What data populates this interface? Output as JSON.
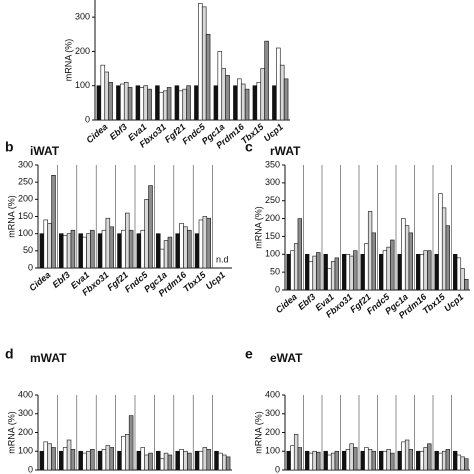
{
  "chart_data": [
    {
      "type": "bar",
      "ylabel": "mRNA (%)",
      "categories": [
        "Cidea",
        "Ebf3",
        "Eva1",
        "Fbxo31",
        "Fgf21",
        "Fndc5",
        "Pgc1a",
        "Prdm16",
        "Tbx15",
        "Ucp1"
      ],
      "ylim": [
        0,
        350
      ],
      "yticks": [
        0,
        100,
        200,
        300
      ],
      "series": [
        {
          "color": "#111111",
          "values": [
            100,
            100,
            100,
            100,
            100,
            100,
            100,
            100,
            100,
            100
          ]
        },
        {
          "color": "#ffffff",
          "values": [
            160,
            105,
            95,
            80,
            85,
            340,
            200,
            120,
            110,
            210
          ]
        },
        {
          "color": "#d9d9d9",
          "values": [
            140,
            110,
            100,
            85,
            90,
            330,
            150,
            105,
            150,
            160
          ]
        },
        {
          "color": "#8c8c8c",
          "values": [
            110,
            95,
            90,
            95,
            100,
            250,
            130,
            90,
            230,
            120
          ]
        }
      ]
    },
    {
      "type": "bar",
      "label": "b",
      "title": "iWAT",
      "ylabel": "mRNA (%)",
      "categories": [
        "Cidea",
        "Ebf3",
        "Eva1",
        "Fbxo31",
        "Fgf21",
        "Fndc5",
        "Pgc1a",
        "Prdm16",
        "Tbx15",
        "Ucp1"
      ],
      "ylim": [
        0,
        300
      ],
      "yticks": [
        0,
        50,
        100,
        150,
        200,
        250,
        300
      ],
      "annotation": "n.d",
      "series": [
        {
          "color": "#111111",
          "values": [
            100,
            100,
            100,
            100,
            100,
            100,
            100,
            100,
            100,
            null
          ]
        },
        {
          "color": "#ffffff",
          "values": [
            140,
            95,
            90,
            110,
            110,
            110,
            55,
            130,
            140,
            null
          ]
        },
        {
          "color": "#d9d9d9",
          "values": [
            130,
            100,
            100,
            145,
            160,
            200,
            80,
            120,
            150,
            null
          ]
        },
        {
          "color": "#8c8c8c",
          "values": [
            270,
            110,
            110,
            120,
            110,
            240,
            90,
            110,
            145,
            null
          ]
        }
      ]
    },
    {
      "type": "bar",
      "label": "c",
      "title": "rWAT",
      "ylabel": "mRNA (%)",
      "categories": [
        "Cidea",
        "Ebf3",
        "Eva1",
        "Fbxo31",
        "Fgf21",
        "Fndc5",
        "Pgc1a",
        "Prdm16",
        "Tbx15",
        "Ucp1"
      ],
      "ylim": [
        0,
        350
      ],
      "yticks": [
        0,
        50,
        100,
        150,
        200,
        250,
        300,
        350
      ],
      "series": [
        {
          "color": "#111111",
          "values": [
            100,
            100,
            100,
            100,
            100,
            100,
            100,
            100,
            100,
            100
          ]
        },
        {
          "color": "#ffffff",
          "values": [
            110,
            80,
            60,
            100,
            130,
            110,
            200,
            100,
            270,
            90
          ]
        },
        {
          "color": "#d9d9d9",
          "values": [
            130,
            95,
            80,
            95,
            220,
            120,
            180,
            110,
            230,
            60
          ]
        },
        {
          "color": "#8c8c8c",
          "values": [
            200,
            105,
            90,
            110,
            160,
            140,
            160,
            110,
            180,
            30
          ]
        }
      ]
    },
    {
      "type": "bar",
      "label": "d",
      "title": "mWAT",
      "ylabel": "mRNA (%)",
      "ylim": [
        0,
        400
      ],
      "yticks": [
        0,
        100,
        200,
        300,
        400
      ],
      "series": [
        {
          "color": "#111111",
          "values": [
            100,
            100,
            100,
            100,
            100,
            100,
            100,
            100,
            100,
            100
          ]
        },
        {
          "color": "#ffffff",
          "values": [
            150,
            120,
            90,
            110,
            180,
            120,
            60,
            110,
            100,
            90
          ]
        },
        {
          "color": "#d9d9d9",
          "values": [
            140,
            160,
            100,
            130,
            190,
            80,
            90,
            100,
            120,
            80
          ]
        },
        {
          "color": "#8c8c8c",
          "values": [
            120,
            110,
            110,
            120,
            290,
            90,
            80,
            90,
            110,
            70
          ]
        }
      ]
    },
    {
      "type": "bar",
      "label": "e",
      "title": "eWAT",
      "ylabel": "mRNA (%)",
      "ylim": [
        0,
        400
      ],
      "yticks": [
        0,
        100,
        200,
        300,
        400
      ],
      "series": [
        {
          "color": "#111111",
          "values": [
            100,
            100,
            100,
            100,
            100,
            100,
            100,
            100,
            100,
            100
          ]
        },
        {
          "color": "#ffffff",
          "values": [
            130,
            90,
            80,
            110,
            120,
            100,
            150,
            100,
            90,
            80
          ]
        },
        {
          "color": "#d9d9d9",
          "values": [
            190,
            100,
            90,
            140,
            110,
            110,
            160,
            120,
            100,
            70
          ]
        },
        {
          "color": "#8c8c8c",
          "values": [
            120,
            95,
            100,
            120,
            100,
            90,
            110,
            140,
            110,
            60
          ]
        }
      ]
    }
  ]
}
